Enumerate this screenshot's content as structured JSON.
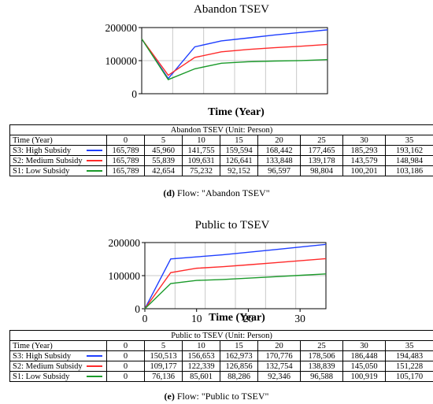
{
  "chart_data": [
    {
      "type": "line",
      "title": "Abandon TSEV",
      "xlabel": "Time (Year)",
      "ylabel": "",
      "xlim": [
        0,
        35
      ],
      "ylim": [
        0,
        200000
      ],
      "yticks": [
        "200000",
        "100000",
        "0"
      ],
      "xticks": [],
      "grid": true,
      "x": [
        0,
        5,
        10,
        15,
        20,
        25,
        30,
        35
      ],
      "series": [
        {
          "name": "S3: High Subsidy",
          "color": "#1f3fff",
          "values": [
            165789,
            45960,
            141755,
            159594,
            168442,
            177465,
            185293,
            193162
          ]
        },
        {
          "name": "S2: Medium Subsidy",
          "color": "#ff2a2a",
          "values": [
            165789,
            55839,
            109631,
            126641,
            133848,
            139178,
            143579,
            148984
          ]
        },
        {
          "name": "S1: Low Subsidy",
          "color": "#1a9a2a",
          "values": [
            165789,
            42654,
            75232,
            92152,
            96597,
            98804,
            100201,
            103186
          ]
        }
      ],
      "table": {
        "caption": "Abandon TSEV (Unit: Person)",
        "header": [
          "Time (Year)",
          "0",
          "5",
          "10",
          "15",
          "20",
          "25",
          "30",
          "35"
        ],
        "rows": [
          {
            "label": "S3: High Subsidy",
            "color": "#1f3fff",
            "cells": [
              "165,789",
              "45,960",
              "141,755",
              "159,594",
              "168,442",
              "177,465",
              "185,293",
              "193,162"
            ]
          },
          {
            "label": "S2: Medium Subsidy",
            "color": "#ff2a2a",
            "cells": [
              "165,789",
              "55,839",
              "109,631",
              "126,641",
              "133,848",
              "139,178",
              "143,579",
              "148,984"
            ]
          },
          {
            "label": "S1: Low Subsidy",
            "color": "#1a9a2a",
            "cells": [
              "165,789",
              "42,654",
              "75,232",
              "92,152",
              "96,597",
              "98,804",
              "100,201",
              "103,186"
            ]
          }
        ]
      },
      "caption_letter": "(d)",
      "caption_text": " Flow: \"Abandon TSEV\""
    },
    {
      "type": "line",
      "title": "Public to TSEV",
      "xlabel": "Time (Year)",
      "ylabel": "",
      "xlim": [
        0,
        35
      ],
      "ylim": [
        0,
        200000
      ],
      "yticks": [
        "200000",
        "100000",
        "0"
      ],
      "xticks": [
        "0",
        "10",
        "20",
        "30"
      ],
      "grid": true,
      "x": [
        0,
        5,
        10,
        15,
        20,
        25,
        30,
        35
      ],
      "series": [
        {
          "name": "S3: High Subsidy",
          "color": "#1f3fff",
          "values": [
            0,
            150513,
            156653,
            162973,
            170776,
            178506,
            186448,
            194483
          ]
        },
        {
          "name": "S2: Medium Subsidy",
          "color": "#ff2a2a",
          "values": [
            0,
            109177,
            122339,
            126856,
            132754,
            138839,
            145050,
            151228
          ]
        },
        {
          "name": "S1: Low Subsidy",
          "color": "#1a9a2a",
          "values": [
            0,
            76136,
            85601,
            88286,
            92346,
            96588,
            100919,
            105170
          ]
        }
      ],
      "table": {
        "caption": "Public to TSEV (Unit: Person)",
        "header": [
          "Time (Year)",
          "0",
          "5",
          "10",
          "15",
          "20",
          "25",
          "30",
          "35"
        ],
        "rows": [
          {
            "label": "S3: High Subsidy",
            "color": "#1f3fff",
            "cells": [
              "0",
              "150,513",
              "156,653",
              "162,973",
              "170,776",
              "178,506",
              "186,448",
              "194,483"
            ]
          },
          {
            "label": "S2: Medium Subsidy",
            "color": "#ff2a2a",
            "cells": [
              "0",
              "109,177",
              "122,339",
              "126,856",
              "132,754",
              "138,839",
              "145,050",
              "151,228"
            ]
          },
          {
            "label": "S1: Low Subsidy",
            "color": "#1a9a2a",
            "cells": [
              "0",
              "76,136",
              "85,601",
              "88,286",
              "92,346",
              "96,588",
              "100,919",
              "105,170"
            ]
          }
        ]
      },
      "caption_letter": "(e)",
      "caption_text": " Flow: \"Public to TSEV\""
    }
  ]
}
